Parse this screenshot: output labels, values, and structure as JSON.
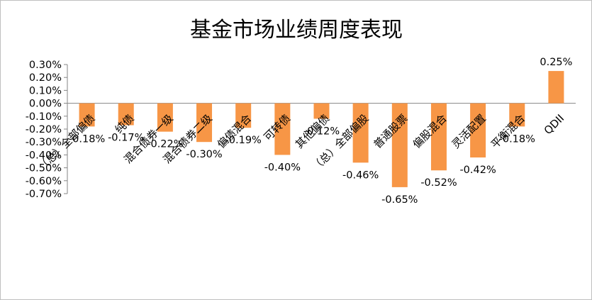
{
  "chart_data": {
    "type": "bar",
    "title": "基金市场业绩周度表现",
    "categories": [
      "（总）全部偏债",
      "纯债",
      "混合债券一级",
      "混合债券二级",
      "偏债混合",
      "可转债",
      "其他偏债",
      "（总）全部偏股",
      "普通股票",
      "偏股混合",
      "灵活配置",
      "平衡混合",
      "QDII"
    ],
    "series": [
      {
        "values": [
          -0.18,
          -0.17,
          -0.22,
          -0.3,
          -0.19,
          -0.4,
          -0.12,
          -0.46,
          -0.65,
          -0.52,
          -0.42,
          -0.18,
          0.25
        ],
        "labels": [
          "-0.18%",
          "-0.17%",
          "-0.22%",
          "-0.30%",
          "-0.19%",
          "-0.40%",
          "-0.12%",
          "-0.46%",
          "-0.65%",
          "-0.52%",
          "-0.42%",
          "-0.18%",
          "0.25%"
        ]
      }
    ],
    "yticks": [
      "0.30%",
      "0.20%",
      "0.10%",
      "0.00%",
      "-0.10%",
      "-0.20%",
      "-0.30%",
      "-0.40%",
      "-0.50%",
      "-0.60%",
      "-0.70%"
    ],
    "ylim": [
      -0.7,
      0.3
    ],
    "bar_color": "#f79646",
    "grid": false,
    "legend": "none"
  }
}
